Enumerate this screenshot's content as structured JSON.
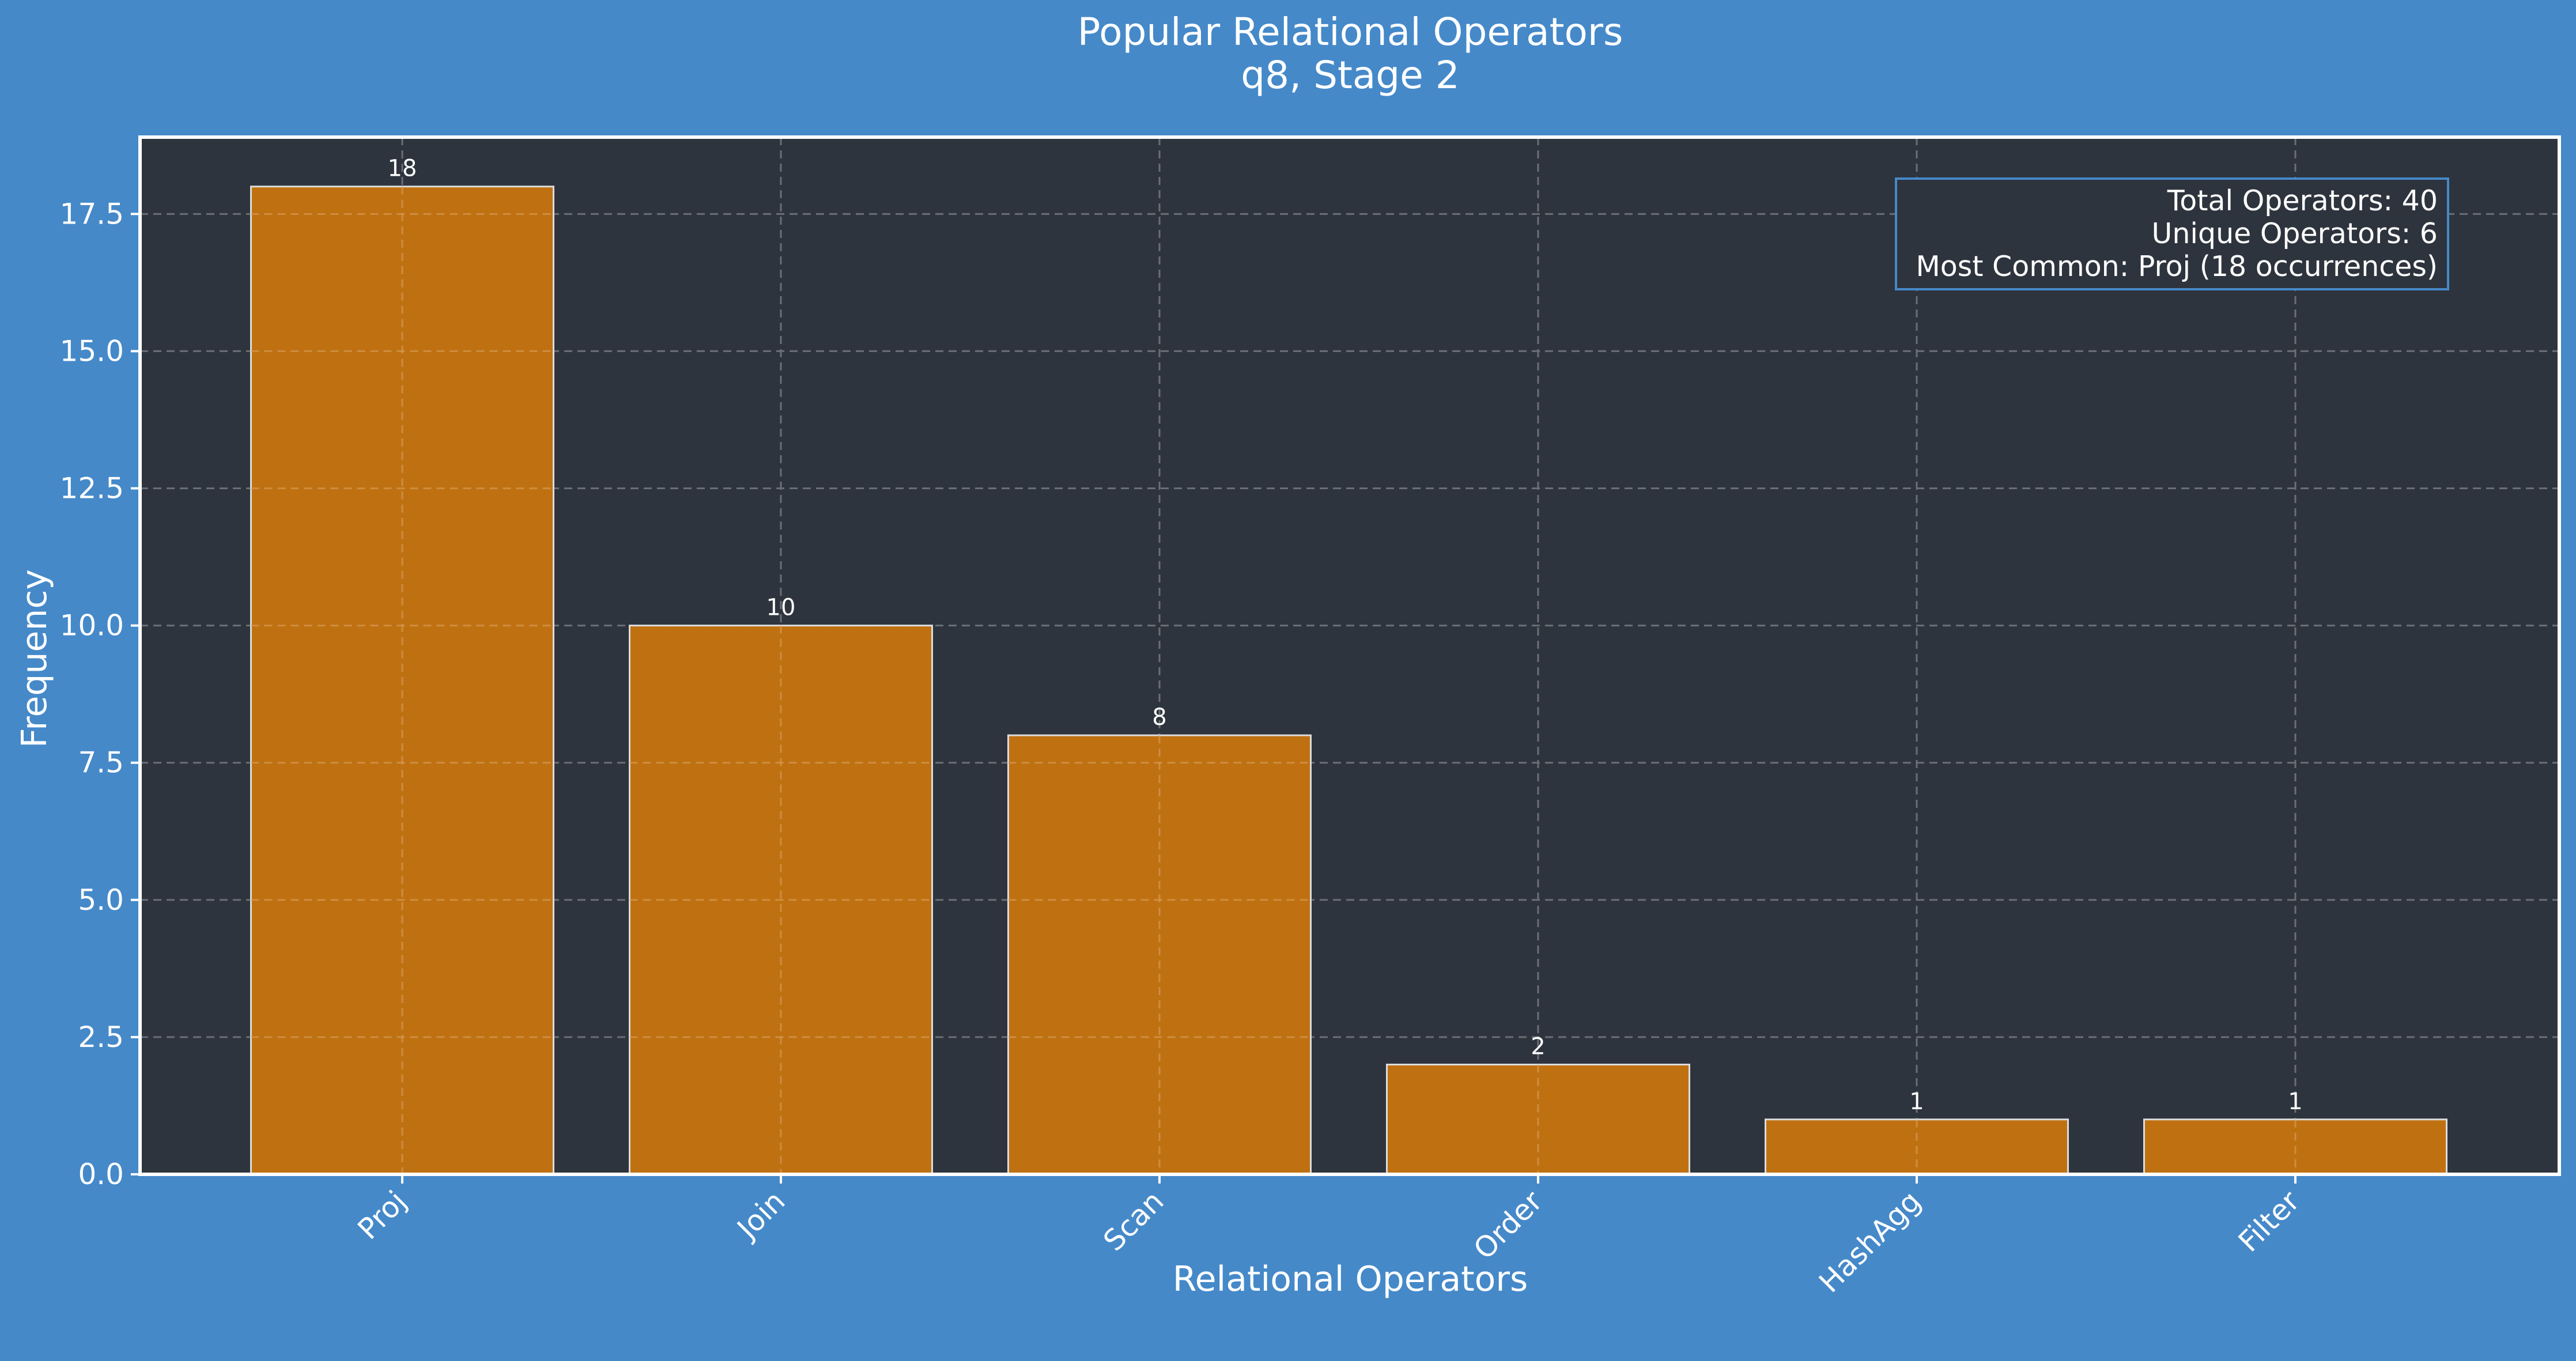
{
  "chart_data": {
    "type": "bar",
    "title": "Popular Relational Operators",
    "subtitle": "q8, Stage 2",
    "xlabel": "Relational Operators",
    "ylabel": "Frequency",
    "categories": [
      "Proj",
      "Join",
      "Scan",
      "Order",
      "HashAgg",
      "Filter"
    ],
    "values": [
      18,
      10,
      8,
      2,
      1,
      1
    ],
    "value_labels": [
      "18",
      "10",
      "8",
      "2",
      "1",
      "1"
    ],
    "ylim": [
      0,
      18.9
    ],
    "yticks": [
      0.0,
      2.5,
      5.0,
      7.5,
      10.0,
      12.5,
      15.0,
      17.5
    ],
    "ytick_labels": [
      "0.0",
      "2.5",
      "5.0",
      "7.5",
      "10.0",
      "12.5",
      "15.0",
      "17.5"
    ],
    "grid": true,
    "stats_box": {
      "placement": "top-right",
      "lines": [
        "Total Operators: 40",
        "Unique Operators: 6",
        "Most Common: Proj (18 occurrences)"
      ]
    },
    "colors": {
      "figure_background": "#4589c9",
      "plot_background": "#2e343d",
      "bar_fill": "#bf7111",
      "bar_edge": "#dcdcdc",
      "axis": "#ffffff",
      "grid": "#6a6f77",
      "stats_box_border": "#4589c9"
    }
  }
}
